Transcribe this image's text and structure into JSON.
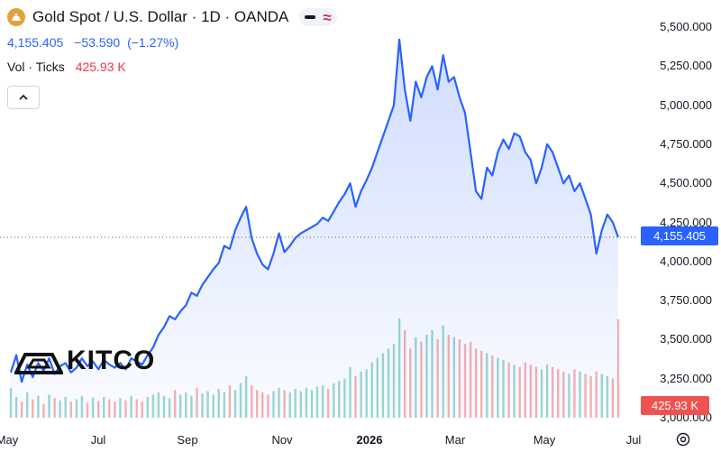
{
  "header": {
    "title": "Gold Spot / U.S. Dollar · 1D · OANDA",
    "price": "4,155.405",
    "change": "−53.590",
    "change_pct": "(−1.27%)",
    "vol_label": "Vol · Ticks",
    "vol_value": "425.93 K"
  },
  "colors": {
    "accent": "#2962ff",
    "down": "#ef5350",
    "gold": "#e2a23b"
  },
  "icons": [
    "gold-logo-icon",
    "minus-icon",
    "wave-icon",
    "chevron-up-icon",
    "settings-icon"
  ],
  "watermark": "KITCO",
  "chart_data": {
    "type": "area",
    "title": "Gold Spot / U.S. Dollar · 1D · OANDA",
    "ylim": [
      3000,
      5575
    ],
    "y_ticks": [
      "5,500.000",
      "5,250.000",
      "5,000.000",
      "4,750.000",
      "4,500.000",
      "4,250.000",
      "4,000.000",
      "3,750.000",
      "3,500.000",
      "3,250.000",
      "3,000.000"
    ],
    "x_ticks": [
      "May",
      "Jul",
      "Sep",
      "Nov",
      "2026",
      "Mar",
      "May",
      "Jul"
    ],
    "last_price": "4,155.405",
    "last_volume": "425.93 K",
    "series": [
      {
        "values": [
          3290,
          3400,
          3230,
          3340,
          3260,
          3350,
          3300,
          3380,
          3280,
          3330,
          3350,
          3290,
          3320,
          3380,
          3330,
          3360,
          3310,
          3370,
          3340,
          3320,
          3350,
          3310,
          3380,
          3360,
          3340,
          3400,
          3450,
          3530,
          3580,
          3650,
          3630,
          3680,
          3720,
          3800,
          3780,
          3850,
          3900,
          3950,
          3990,
          4100,
          4080,
          4200,
          4280,
          4350,
          4150,
          4050,
          3980,
          3950,
          4050,
          4180,
          4060,
          4100,
          4150,
          4180,
          4200,
          4220,
          4240,
          4280,
          4260,
          4320,
          4380,
          4430,
          4500,
          4350,
          4450,
          4520,
          4600,
          4700,
          4800,
          4900,
          5000,
          5420,
          5100,
          4900,
          5150,
          5050,
          5180,
          5250,
          5100,
          5320,
          5150,
          5180,
          5050,
          4950,
          4700,
          4450,
          4400,
          4600,
          4550,
          4700,
          4780,
          4720,
          4820,
          4800,
          4700,
          4650,
          4500,
          4600,
          4750,
          4700,
          4600,
          4500,
          4550,
          4450,
          4500,
          4400,
          4300,
          4050,
          4200,
          4300,
          4250,
          4155
        ]
      },
      {
        "name": "Vol · Ticks",
        "values": [
          130,
          90,
          70,
          110,
          80,
          95,
          60,
          100,
          85,
          75,
          90,
          70,
          80,
          95,
          65,
          88,
          72,
          90,
          80,
          70,
          85,
          75,
          95,
          80,
          70,
          90,
          100,
          110,
          95,
          85,
          120,
          100,
          110,
          95,
          130,
          105,
          115,
          100,
          125,
          110,
          140,
          120,
          150,
          180,
          140,
          120,
          110,
          100,
          115,
          130,
          120,
          110,
          125,
          115,
          130,
          120,
          135,
          140,
          125,
          150,
          160,
          170,
          220,
          180,
          200,
          210,
          240,
          260,
          280,
          300,
          320,
          430,
          380,
          300,
          350,
          330,
          360,
          380,
          340,
          400,
          360,
          350,
          340,
          320,
          330,
          300,
          290,
          280,
          270,
          260,
          250,
          240,
          230,
          220,
          240,
          230,
          220,
          210,
          230,
          220,
          210,
          200,
          190,
          210,
          200,
          190,
          180,
          200,
          190,
          180,
          170,
          426
        ]
      }
    ]
  }
}
